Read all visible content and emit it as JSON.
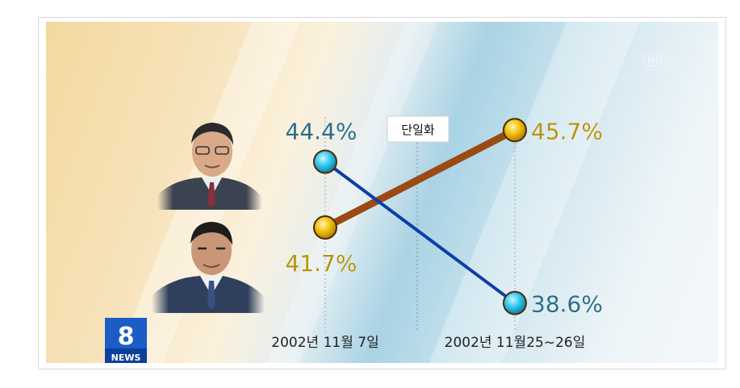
{
  "chart_data": {
    "type": "line",
    "categories": [
      "2002년 11월 7일",
      "2002년 11월25~26일"
    ],
    "series": [
      {
        "values": [
          44.4,
          38.6
        ],
        "labels": [
          "44.4%",
          "38.6%"
        ],
        "color": "#0b3ea8",
        "marker": "#34c9f0",
        "label_color": "#2a6d86"
      },
      {
        "values": [
          41.7,
          45.7
        ],
        "labels": [
          "41.7%",
          "45.7%"
        ],
        "color": "#9a4a12",
        "marker": "#f2c20a",
        "label_color": "#b8920f"
      }
    ],
    "annotation": "단일화",
    "ylim": [
      37,
      47
    ],
    "grid": false
  },
  "broadcast": {
    "hd_badge": "HD",
    "logo_number": "8",
    "logo_text": "NEWS"
  },
  "colors": {
    "accent_blue": "#0b3ea8",
    "accent_brown": "#9a4a12"
  }
}
